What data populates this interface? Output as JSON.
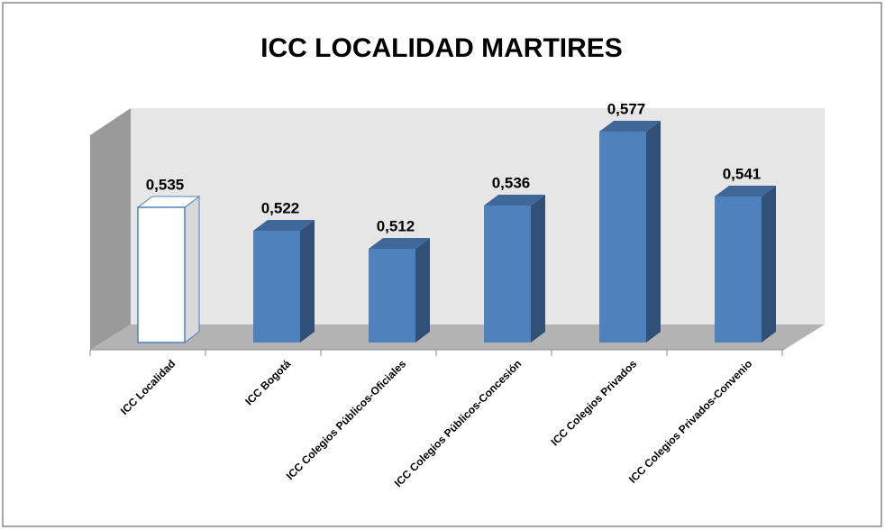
{
  "chart_data": {
    "type": "bar3d",
    "title": "ICC LOCALIDAD MARTIRES",
    "categories": [
      "ICC Localidad",
      "ICC Bogotá",
      "ICC Colegios Públicos-Oficiales",
      "ICC Colegios Públicos-Concesión",
      "ICC Colegios Privados",
      "ICC Colegios Privados-Convenio"
    ],
    "values": [
      0.535,
      0.522,
      0.512,
      0.536,
      0.577,
      0.541
    ],
    "value_labels": [
      "0,535",
      "0,522",
      "0,512",
      "0,536",
      "0,577",
      "0,541"
    ],
    "colors": [
      "#ffffff",
      "#4f81bd",
      "#4f81bd",
      "#4f81bd",
      "#4f81bd",
      "#4f81bd"
    ],
    "ylim": [
      0.46,
      0.59
    ]
  }
}
